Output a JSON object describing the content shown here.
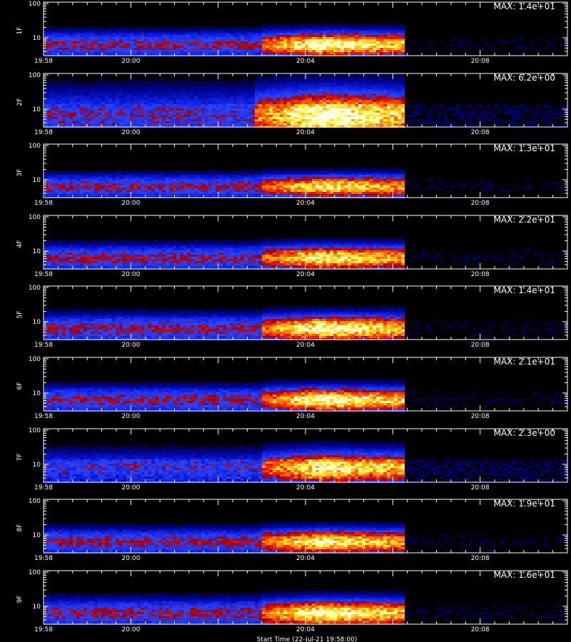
{
  "chart_data": {
    "type": "heatmap",
    "x_axis": {
      "range": [
        "19:58",
        "20:10"
      ],
      "tick_labels": [
        "19:58",
        "20:00",
        "20:04",
        "20:08"
      ],
      "tick_values_min": [
        0,
        2,
        6,
        10
      ],
      "title": "Start Time (22-Jul-21 19:58:00)"
    },
    "y_axis": {
      "scale": "log",
      "range": [
        3,
        110
      ],
      "tick_labels": [
        "100",
        "10"
      ],
      "tick_values": [
        100,
        10
      ]
    },
    "panels": [
      {
        "label": "1F",
        "max_label": "MAX: 1.4e+01",
        "band_center": 6.2,
        "band_halfwidth": 0.11,
        "flare_start": 5.0,
        "flare_peak": 6.3,
        "flare_end": 8.25,
        "bg_level": 0.45,
        "peak_level": 1.0,
        "noise": 0.12
      },
      {
        "label": "2F",
        "max_label": "MAX: 6.2e+00",
        "band_center": 6.5,
        "band_halfwidth": 0.22,
        "flare_start": 4.8,
        "flare_peak": 6.4,
        "flare_end": 8.25,
        "bg_level": 0.35,
        "peak_level": 1.0,
        "noise": 0.3
      },
      {
        "label": "3F",
        "max_label": "MAX: 1.3e+01",
        "band_center": 6.2,
        "band_halfwidth": 0.1,
        "flare_start": 5.0,
        "flare_peak": 6.4,
        "flare_end": 8.25,
        "bg_level": 0.45,
        "peak_level": 0.9,
        "noise": 0.12
      },
      {
        "label": "4F",
        "max_label": "MAX: 2.2e+01",
        "band_center": 6.2,
        "band_halfwidth": 0.11,
        "flare_start": 5.0,
        "flare_peak": 6.3,
        "flare_end": 8.25,
        "bg_level": 0.45,
        "peak_level": 0.92,
        "noise": 0.12
      },
      {
        "label": "5F",
        "max_label": "MAX: 1.4e+01",
        "band_center": 6.2,
        "band_halfwidth": 0.12,
        "flare_start": 5.0,
        "flare_peak": 6.3,
        "flare_end": 8.25,
        "bg_level": 0.45,
        "peak_level": 0.98,
        "noise": 0.12
      },
      {
        "label": "6F",
        "max_label": "MAX: 2.1e+01",
        "band_center": 6.2,
        "band_halfwidth": 0.11,
        "flare_start": 5.0,
        "flare_peak": 6.3,
        "flare_end": 8.25,
        "bg_level": 0.45,
        "peak_level": 0.98,
        "noise": 0.12
      },
      {
        "label": "7F",
        "max_label": "MAX: 2.3e+00",
        "band_center": 8.0,
        "band_halfwidth": 0.14,
        "flare_start": 5.0,
        "flare_peak": 6.3,
        "flare_end": 8.25,
        "bg_level": 0.3,
        "peak_level": 0.9,
        "noise": 0.38
      },
      {
        "label": "8F",
        "max_label": "MAX: 1.9e+01",
        "band_center": 6.2,
        "band_halfwidth": 0.11,
        "flare_start": 5.0,
        "flare_peak": 6.3,
        "flare_end": 8.25,
        "bg_level": 0.45,
        "peak_level": 0.93,
        "noise": 0.12
      },
      {
        "label": "9F",
        "max_label": "MAX: 1.6e+01",
        "band_center": 6.2,
        "band_halfwidth": 0.12,
        "flare_start": 5.0,
        "flare_peak": 6.3,
        "flare_end": 8.25,
        "bg_level": 0.45,
        "peak_level": 0.98,
        "noise": 0.12
      }
    ]
  },
  "colors": {
    "background": "#000000",
    "axes": "#ffffff",
    "colormap": [
      "#000000",
      "#0000c8",
      "#1e3cff",
      "#a00000",
      "#ff2000",
      "#ffb000",
      "#ffff60",
      "#ffffe0"
    ]
  }
}
